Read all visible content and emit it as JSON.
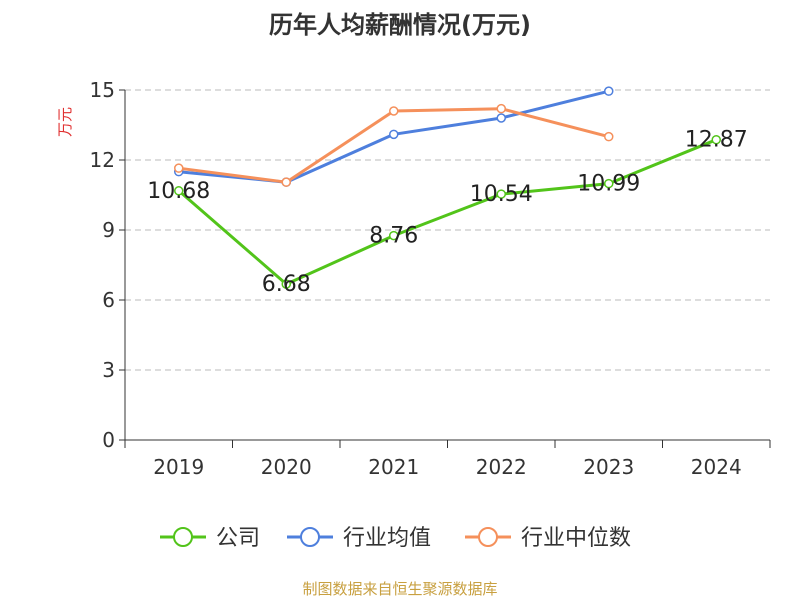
{
  "chart_data": {
    "type": "line",
    "title": "历年人均薪酬情况(万元)",
    "ylabel": "万元",
    "xlabel": "",
    "categories": [
      "2019",
      "2020",
      "2021",
      "2022",
      "2023",
      "2024"
    ],
    "ylim": [
      0,
      15
    ],
    "yticks": [
      0,
      3,
      6,
      9,
      12,
      15
    ],
    "grid": true,
    "legend_position": "bottom",
    "series": [
      {
        "name": "公司",
        "color": "#52c41a",
        "values": [
          10.68,
          6.68,
          8.76,
          10.54,
          10.99,
          12.87
        ],
        "show_labels": true
      },
      {
        "name": "行业均值",
        "color": "#4e7fdd",
        "values": [
          11.5,
          11.05,
          13.1,
          13.8,
          14.95,
          null
        ],
        "show_labels": false
      },
      {
        "name": "行业中位数",
        "color": "#f5905b",
        "values": [
          11.65,
          11.05,
          14.1,
          14.2,
          13.0,
          null
        ],
        "show_labels": false
      }
    ]
  },
  "footer": {
    "source_text": "制图数据来自恒生聚源数据库"
  },
  "colors": {
    "title": "#333333",
    "axis": "#333333",
    "grid": "#bbbbbb",
    "ylabel": "#e03030",
    "footer": "#c8a040"
  }
}
